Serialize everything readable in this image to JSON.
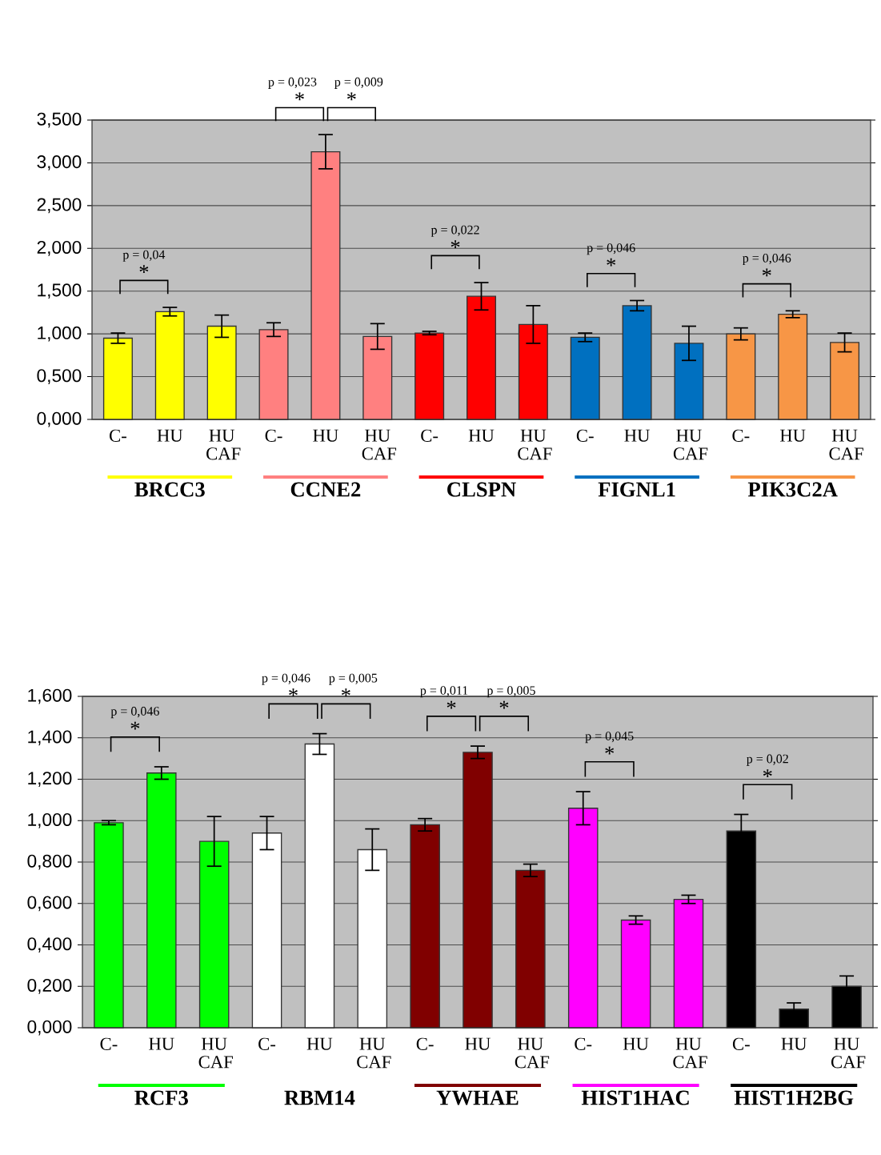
{
  "chart_data": [
    {
      "type": "bar",
      "categories": [
        "C-",
        "HU",
        "HU CAF",
        "C-",
        "HU",
        "HU CAF",
        "C-",
        "HU",
        "HU CAF",
        "C-",
        "HU",
        "HU CAF",
        "C-",
        "HU",
        "HU CAF"
      ],
      "series": [
        {
          "name": "BRCC3",
          "color": "#ffff00",
          "values": [
            0.95,
            1.26,
            1.09,
            null,
            null,
            null,
            null,
            null,
            null,
            null,
            null,
            null,
            null,
            null,
            null
          ],
          "errors": [
            0.06,
            0.05,
            0.13,
            null,
            null,
            null,
            null,
            null,
            null,
            null,
            null,
            null,
            null,
            null,
            null
          ]
        },
        {
          "name": "CCNE2",
          "color": "#ff8080",
          "values": [
            null,
            null,
            null,
            1.05,
            3.13,
            0.97,
            null,
            null,
            null,
            null,
            null,
            null,
            null,
            null,
            null
          ],
          "errors": [
            null,
            null,
            null,
            0.08,
            0.2,
            0.15,
            null,
            null,
            null,
            null,
            null,
            null,
            null,
            null,
            null
          ]
        },
        {
          "name": "CLSPN",
          "color": "#ff0000",
          "values": [
            null,
            null,
            null,
            null,
            null,
            null,
            1.01,
            1.44,
            1.11,
            null,
            null,
            null,
            null,
            null,
            null
          ],
          "errors": [
            null,
            null,
            null,
            null,
            null,
            null,
            0.02,
            0.16,
            0.22,
            null,
            null,
            null,
            null,
            null,
            null
          ]
        },
        {
          "name": "FIGNL1",
          "color": "#0070c0",
          "values": [
            null,
            null,
            null,
            null,
            null,
            null,
            null,
            null,
            null,
            0.96,
            1.33,
            0.89,
            null,
            null,
            null
          ],
          "errors": [
            null,
            null,
            null,
            null,
            null,
            null,
            null,
            null,
            null,
            0.05,
            0.06,
            0.2,
            null,
            null,
            null
          ]
        },
        {
          "name": "PIK3C2A",
          "color": "#f79646",
          "values": [
            null,
            null,
            null,
            null,
            null,
            null,
            null,
            null,
            null,
            null,
            null,
            null,
            1.0,
            1.23,
            0.9
          ],
          "errors": [
            null,
            null,
            null,
            null,
            null,
            null,
            null,
            null,
            null,
            null,
            null,
            null,
            0.07,
            0.04,
            0.11
          ]
        }
      ],
      "ylim": [
        0,
        3.5
      ],
      "yticks": [
        {
          "value": 0,
          "label": "0,000"
        },
        {
          "value": 0.5,
          "label": "0,500"
        },
        {
          "value": 1.0,
          "label": "1,000"
        },
        {
          "value": 1.5,
          "label": "1,500"
        },
        {
          "value": 2.0,
          "label": "2,000"
        },
        {
          "value": 2.5,
          "label": "2,500"
        },
        {
          "value": 3.0,
          "label": "3,000"
        },
        {
          "value": 3.5,
          "label": "3,500"
        }
      ],
      "grid": "y",
      "annotations": [
        "p = 0,04",
        "*",
        "p = 0,023",
        "*",
        "p = 0,009",
        "*",
        "p = 0,022",
        "*",
        "p = 0,046",
        "*",
        "p = 0,046",
        "*"
      ]
    },
    {
      "type": "bar",
      "categories": [
        "C-",
        "HU",
        "HU CAF",
        "C-",
        "HU",
        "HU CAF",
        "C-",
        "HU",
        "HU CAF",
        "C-",
        "HU",
        "HU CAF",
        "C-",
        "HU",
        "HU CAF"
      ],
      "series": [
        {
          "name": "RCF3",
          "color": "#00ff00",
          "values": [
            0.99,
            1.23,
            0.9,
            null,
            null,
            null,
            null,
            null,
            null,
            null,
            null,
            null,
            null,
            null,
            null
          ],
          "errors": [
            0.01,
            0.03,
            0.12,
            null,
            null,
            null,
            null,
            null,
            null,
            null,
            null,
            null,
            null,
            null,
            null
          ]
        },
        {
          "name": "RBM14",
          "color": "#ffffff",
          "values": [
            null,
            null,
            null,
            0.94,
            1.37,
            0.86,
            null,
            null,
            null,
            null,
            null,
            null,
            null,
            null,
            null
          ],
          "errors": [
            null,
            null,
            null,
            0.08,
            0.05,
            0.1,
            null,
            null,
            null,
            null,
            null,
            null,
            null,
            null,
            null
          ]
        },
        {
          "name": "YWHAE",
          "color": "#800000",
          "values": [
            null,
            null,
            null,
            null,
            null,
            null,
            0.98,
            1.33,
            0.76,
            null,
            null,
            null,
            null,
            null,
            null
          ],
          "errors": [
            null,
            null,
            null,
            null,
            null,
            null,
            0.03,
            0.03,
            0.03,
            null,
            null,
            null,
            null,
            null,
            null
          ]
        },
        {
          "name": "HIST1HAC",
          "color": "#ff00ff",
          "values": [
            null,
            null,
            null,
            null,
            null,
            null,
            null,
            null,
            null,
            1.06,
            0.52,
            0.62,
            null,
            null,
            null
          ],
          "errors": [
            null,
            null,
            null,
            null,
            null,
            null,
            null,
            null,
            null,
            0.08,
            0.02,
            0.02,
            null,
            null,
            null
          ]
        },
        {
          "name": "HIST1H2BG",
          "color": "#000000",
          "values": [
            null,
            null,
            null,
            null,
            null,
            null,
            null,
            null,
            null,
            null,
            null,
            null,
            0.95,
            0.09,
            0.2
          ],
          "errors": [
            null,
            null,
            null,
            null,
            null,
            null,
            null,
            null,
            null,
            null,
            null,
            null,
            0.08,
            0.03,
            0.05
          ]
        }
      ],
      "ylim": [
        0,
        1.6
      ],
      "yticks": [
        {
          "value": 0,
          "label": "0,000"
        },
        {
          "value": 0.2,
          "label": "0,200"
        },
        {
          "value": 0.4,
          "label": "0,400"
        },
        {
          "value": 0.6,
          "label": "0,600"
        },
        {
          "value": 0.8,
          "label": "0,800"
        },
        {
          "value": 1.0,
          "label": "1,000"
        },
        {
          "value": 1.2,
          "label": "1,200"
        },
        {
          "value": 1.4,
          "label": "1,400"
        },
        {
          "value": 1.6,
          "label": "1,600"
        }
      ],
      "grid": "y",
      "annotations": [
        "p = 0,046",
        "*",
        "p = 0,046",
        "*",
        "p = 0,005",
        "*",
        "p = 0,011",
        "*",
        "p = 0,005",
        "*",
        "p = 0,045",
        "*",
        "p = 0,02",
        "*"
      ]
    }
  ]
}
